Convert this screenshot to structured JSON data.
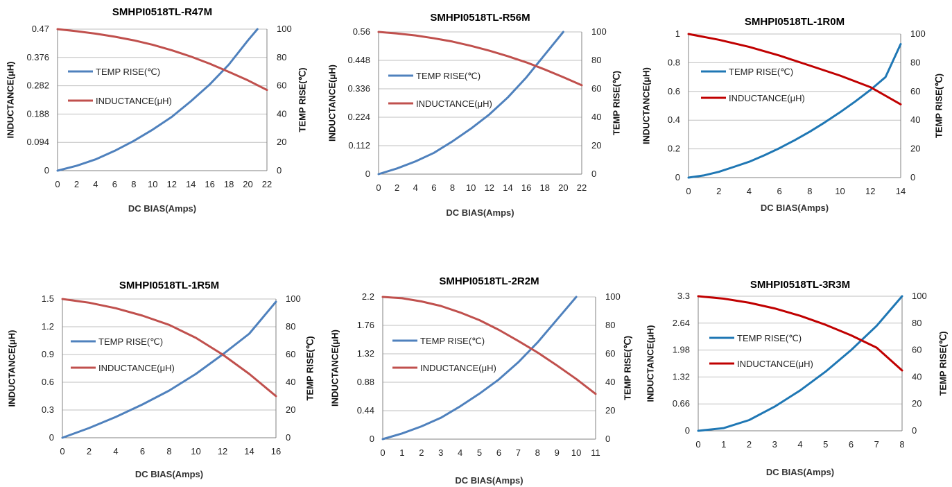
{
  "chart_data": [
    {
      "type": "line",
      "title": "SMHPI0518TL-R47M",
      "xlabel": "DC  BIAS(Amps)",
      "ylabel": "INDUCTANCE(μH)",
      "y2label": "TEMP RISE(℃)",
      "xlim": [
        0,
        22
      ],
      "xticks": [
        0,
        2,
        4,
        6,
        8,
        10,
        12,
        14,
        16,
        18,
        20,
        22
      ],
      "ylim": [
        0,
        0.47
      ],
      "yticks": [
        "0",
        "0.094",
        "0.188",
        "0.282",
        "0.376",
        "0.47"
      ],
      "y2lim": [
        0,
        100
      ],
      "y2ticks": [
        "0",
        "20",
        "40",
        "60",
        "80",
        "100"
      ],
      "grid": true,
      "legend_position": "left",
      "series": [
        {
          "name": "TEMP RISE(℃)",
          "axis": "right",
          "color": "#4f81bd",
          "x": [
            0,
            2,
            4,
            6,
            8,
            10,
            12,
            14,
            16,
            18,
            20,
            21
          ],
          "y": [
            0,
            3.5,
            8,
            14,
            21,
            29,
            38,
            49,
            61,
            75,
            92,
            100
          ]
        },
        {
          "name": "INDUCTANCE(μH)",
          "axis": "left",
          "color": "#c0504d",
          "x": [
            0,
            2,
            4,
            6,
            8,
            10,
            12,
            14,
            16,
            18,
            20,
            22
          ],
          "y": [
            0.47,
            0.463,
            0.455,
            0.445,
            0.433,
            0.418,
            0.4,
            0.379,
            0.355,
            0.328,
            0.3,
            0.268
          ]
        }
      ]
    },
    {
      "type": "line",
      "title": "SMHPI0518TL-R56M",
      "xlabel": "DC  BIAS(Amps)",
      "ylabel": "INDUCTANCE(μH)",
      "y2label": "TEMP RISE(℃)",
      "xlim": [
        0,
        22
      ],
      "xticks": [
        0,
        2,
        4,
        6,
        8,
        10,
        12,
        14,
        16,
        18,
        20,
        22
      ],
      "ylim": [
        0,
        0.56
      ],
      "yticks": [
        "0",
        "0.112",
        "0.224",
        "0.336",
        "0.448",
        "0.56"
      ],
      "y2lim": [
        0,
        100
      ],
      "y2ticks": [
        "0",
        "20",
        "40",
        "60",
        "80",
        "100"
      ],
      "grid": true,
      "legend_position": "left",
      "series": [
        {
          "name": "TEMP RISE(℃)",
          "axis": "right",
          "color": "#4f81bd",
          "x": [
            0,
            2,
            4,
            6,
            8,
            10,
            12,
            14,
            16,
            18,
            20
          ],
          "y": [
            0,
            4,
            9,
            15,
            23,
            32,
            42,
            54,
            68,
            84,
            100
          ]
        },
        {
          "name": "INDUCTANCE(μH)",
          "axis": "left",
          "color": "#c0504d",
          "x": [
            0,
            2,
            4,
            6,
            8,
            10,
            12,
            14,
            16,
            18,
            20,
            22
          ],
          "y": [
            0.56,
            0.554,
            0.546,
            0.535,
            0.522,
            0.505,
            0.486,
            0.464,
            0.44,
            0.412,
            0.382,
            0.35
          ]
        }
      ]
    },
    {
      "type": "line",
      "title": "SMHPI0518TL-1R0M",
      "xlabel": "DC  BIAS(Amps)",
      "ylabel": "INDUCTANCE(μH)",
      "y2label": "TEMP RISE(℃)",
      "xlim": [
        0,
        14
      ],
      "xticks": [
        0,
        2,
        4,
        6,
        8,
        10,
        12,
        14
      ],
      "ylim": [
        0,
        1
      ],
      "yticks": [
        "0",
        "0.2",
        "0.4",
        "0.6",
        "0.8",
        "1"
      ],
      "y2lim": [
        0,
        100
      ],
      "y2ticks": [
        "0",
        "20",
        "40",
        "60",
        "80",
        "100"
      ],
      "grid": true,
      "legend_position": "left",
      "series": [
        {
          "name": "TEMP RISE(℃)",
          "axis": "right",
          "color": "#1f77b4",
          "x": [
            0,
            1,
            2,
            3,
            4,
            5,
            6,
            7,
            8,
            9,
            10,
            11,
            12,
            13,
            14
          ],
          "y": [
            0,
            1.5,
            4,
            7.5,
            11,
            15.5,
            20.5,
            26,
            32,
            38.5,
            45.5,
            53,
            61,
            70,
            93
          ]
        },
        {
          "name": "INDUCTANCE(μH)",
          "axis": "left",
          "color": "#c00000",
          "x": [
            0,
            2,
            4,
            6,
            8,
            10,
            12,
            14
          ],
          "y": [
            1,
            0.96,
            0.91,
            0.85,
            0.78,
            0.71,
            0.63,
            0.51
          ]
        }
      ]
    },
    {
      "type": "line",
      "title": "SMHPI0518TL-1R5M",
      "xlabel": "DC  BIAS(Amps)",
      "ylabel": "INDUCTANCE(μH)",
      "y2label": "TEMP RISE(℃)",
      "xlim": [
        0,
        16
      ],
      "xticks": [
        0,
        2,
        4,
        6,
        8,
        10,
        12,
        14,
        16
      ],
      "ylim": [
        0,
        1.5
      ],
      "yticks": [
        "0",
        "0.3",
        "0.6",
        "0.9",
        "1.2",
        "1.5"
      ],
      "y2lim": [
        0,
        100
      ],
      "y2ticks": [
        "0",
        "20",
        "40",
        "60",
        "80",
        "100"
      ],
      "grid": true,
      "legend_position": "left",
      "series": [
        {
          "name": "TEMP RISE(℃)",
          "axis": "right",
          "color": "#4f81bd",
          "x": [
            0,
            2,
            4,
            6,
            8,
            10,
            12,
            14,
            16
          ],
          "y": [
            0,
            7,
            15,
            24,
            34,
            46,
            60,
            75,
            98
          ]
        },
        {
          "name": "INDUCTANCE(μH)",
          "axis": "left",
          "color": "#c0504d",
          "x": [
            0,
            2,
            4,
            6,
            8,
            10,
            12,
            14,
            16
          ],
          "y": [
            1.5,
            1.46,
            1.4,
            1.32,
            1.22,
            1.08,
            0.9,
            0.69,
            0.45
          ]
        }
      ]
    },
    {
      "type": "line",
      "title": "SMHPI0518TL-2R2M",
      "xlabel": "DC  BIAS(Amps)",
      "ylabel": "INDUCTANCE(μH)",
      "y2label": "TEMP RISE(℃)",
      "xlim": [
        0,
        11
      ],
      "xticks": [
        0,
        1,
        2,
        3,
        4,
        5,
        6,
        7,
        8,
        9,
        10,
        11
      ],
      "ylim": [
        0,
        2.2
      ],
      "yticks": [
        "0",
        "0.44",
        "0.88",
        "1.32",
        "1.76",
        "2.2"
      ],
      "y2lim": [
        0,
        100
      ],
      "y2ticks": [
        "0",
        "20",
        "40",
        "60",
        "80",
        "100"
      ],
      "grid": true,
      "legend_position": "left",
      "series": [
        {
          "name": "TEMP RISE(℃)",
          "axis": "right",
          "color": "#4f81bd",
          "x": [
            0,
            1,
            2,
            3,
            4,
            5,
            6,
            7,
            8,
            9,
            10
          ],
          "y": [
            0,
            4,
            9,
            15,
            23,
            32,
            42,
            54,
            68,
            84,
            100
          ]
        },
        {
          "name": "INDUCTANCE(μH)",
          "axis": "left",
          "color": "#c0504d",
          "x": [
            0,
            1,
            2,
            3,
            4,
            5,
            6,
            7,
            8,
            9,
            10,
            11
          ],
          "y": [
            2.2,
            2.18,
            2.13,
            2.06,
            1.96,
            1.84,
            1.69,
            1.52,
            1.34,
            1.14,
            0.93,
            0.7
          ]
        }
      ]
    },
    {
      "type": "line",
      "title": "SMHPI0518TL-3R3M",
      "xlabel": "DC  BIAS(Amps)",
      "ylabel": "INDUCTANCE(μH)",
      "y2label": "TEMP RISE(℃)",
      "xlim": [
        0,
        8
      ],
      "xticks": [
        0,
        1,
        2,
        3,
        4,
        5,
        6,
        7,
        8
      ],
      "ylim": [
        0,
        3.3
      ],
      "yticks": [
        "0",
        "0.66",
        "1.32",
        "1.98",
        "2.64",
        "3.3"
      ],
      "y2lim": [
        0,
        100
      ],
      "y2ticks": [
        "0",
        "20",
        "40",
        "60",
        "80",
        "100"
      ],
      "grid": true,
      "legend_position": "left",
      "series": [
        {
          "name": "TEMP RISE(℃)",
          "axis": "right",
          "color": "#1f77b4",
          "x": [
            0,
            1,
            2,
            3,
            4,
            5,
            6,
            7,
            8
          ],
          "y": [
            0,
            2,
            8,
            18,
            30,
            44,
            60,
            78,
            100
          ]
        },
        {
          "name": "INDUCTANCE(μH)",
          "axis": "left",
          "color": "#c00000",
          "x": [
            0,
            1,
            2,
            3,
            4,
            5,
            6,
            7,
            8
          ],
          "y": [
            3.3,
            3.24,
            3.14,
            3.0,
            2.82,
            2.6,
            2.34,
            2.04,
            1.48
          ]
        }
      ]
    }
  ]
}
